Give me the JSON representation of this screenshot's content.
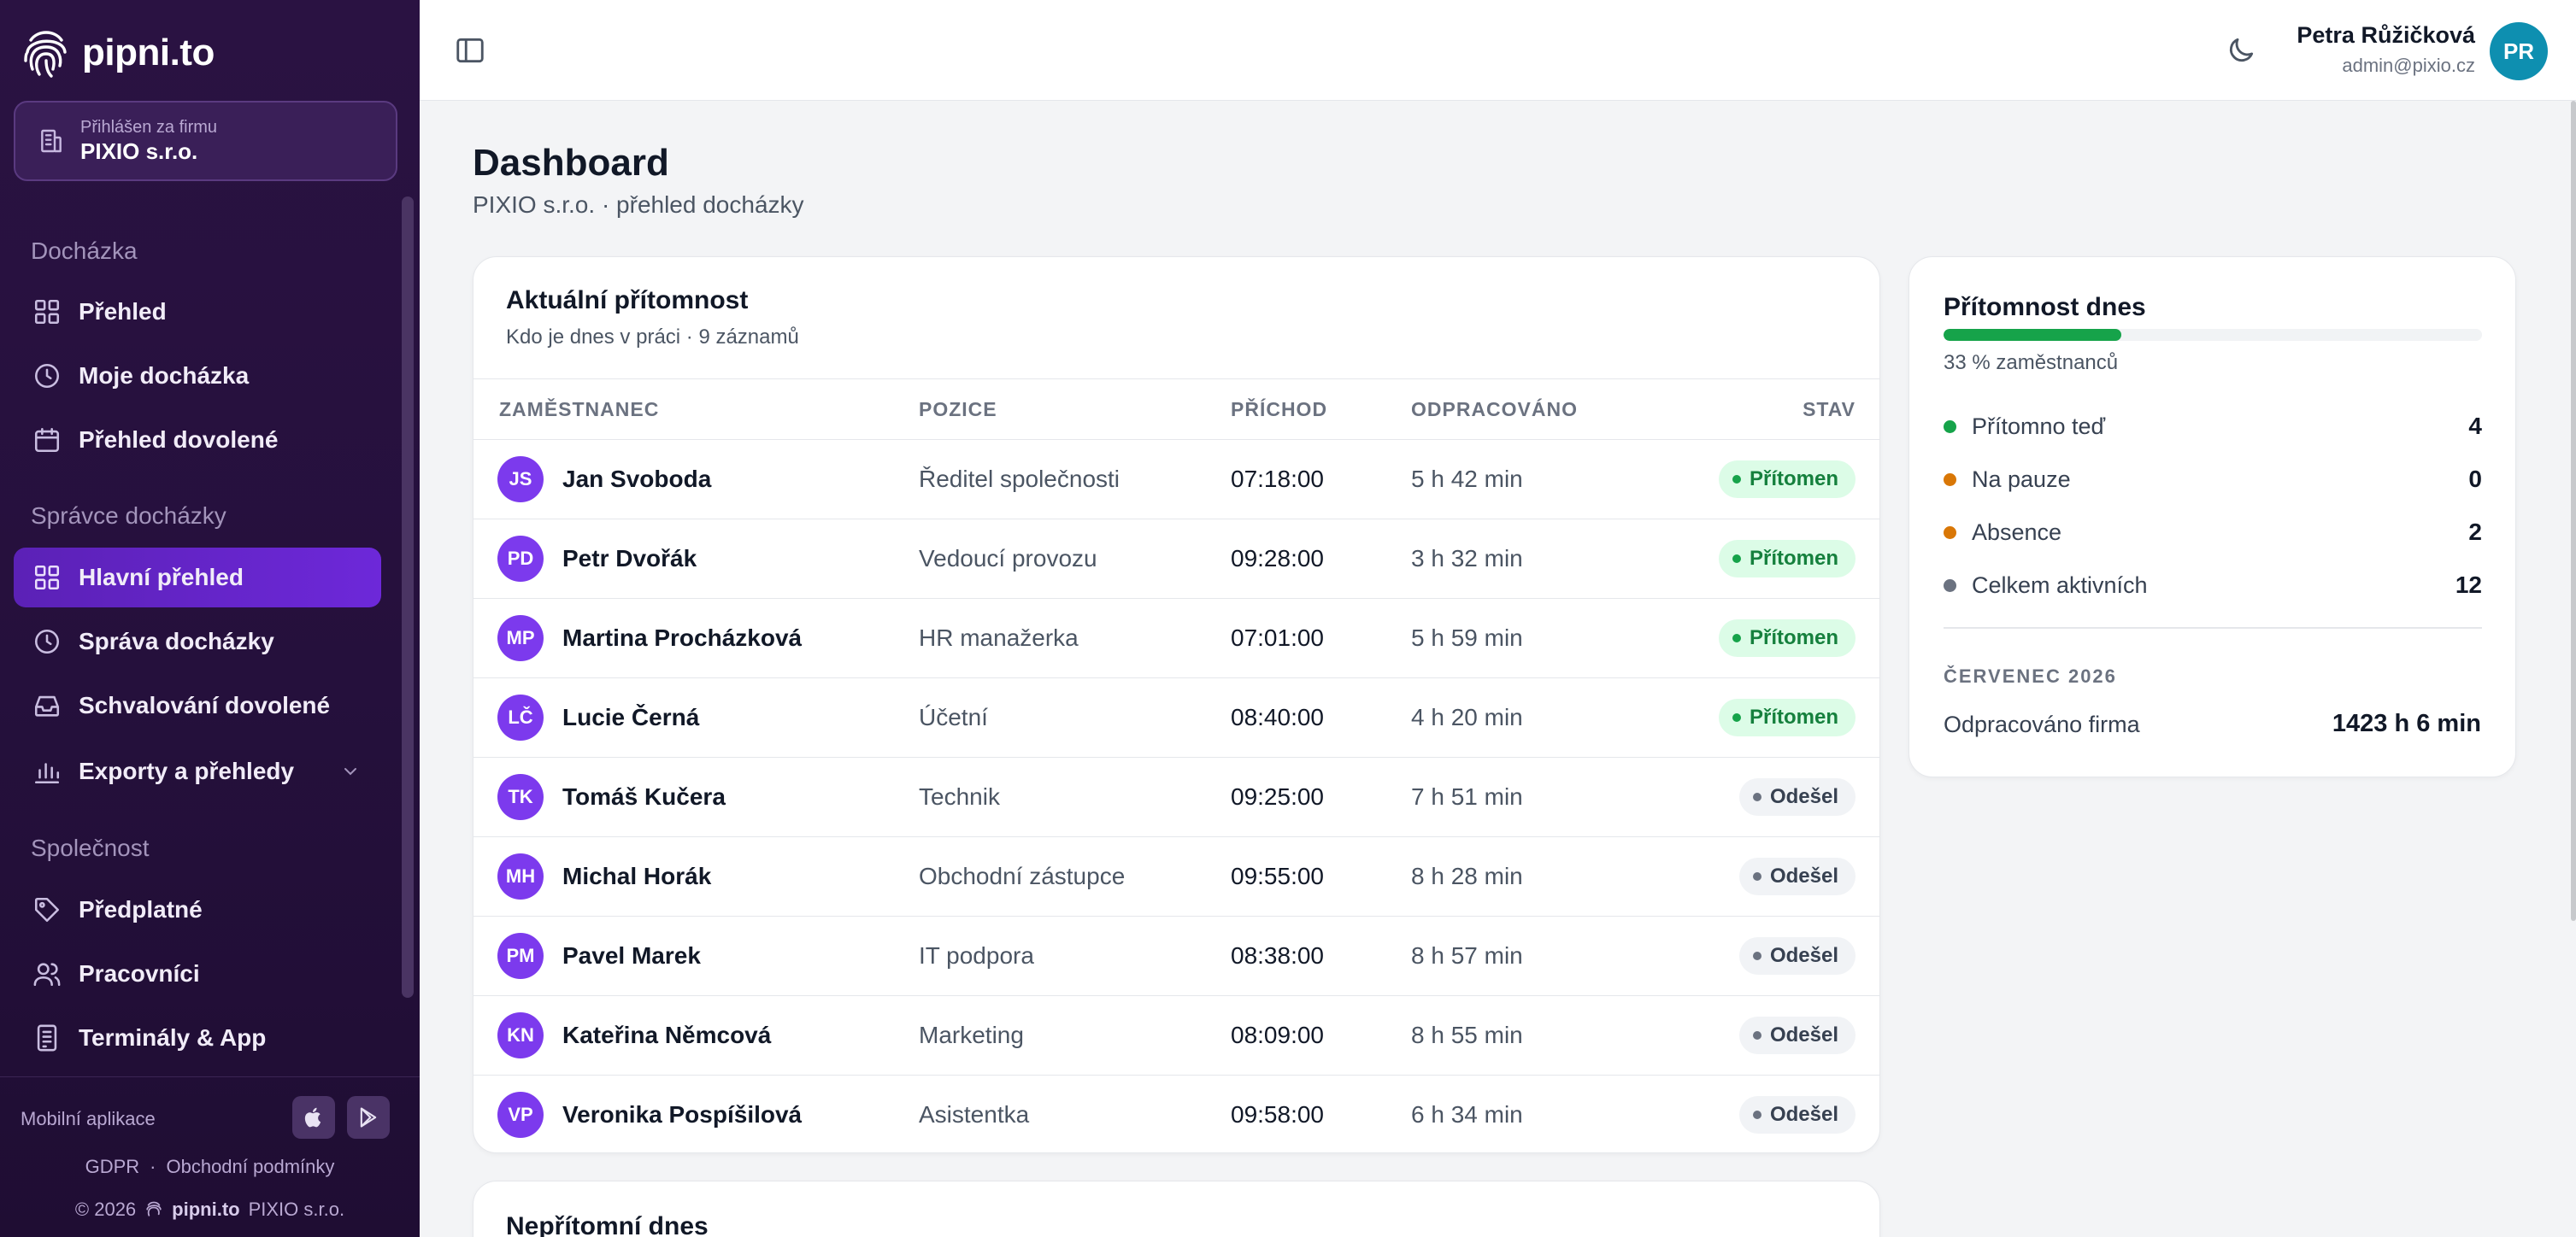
{
  "brand": {
    "name": "pipni.to"
  },
  "company": {
    "caption": "Přihlášen za firmu",
    "name": "PIXIO s.r.o."
  },
  "nav": {
    "sections": [
      {
        "label": "Docházka",
        "items": [
          {
            "label": "Přehled",
            "icon": "grid-icon"
          },
          {
            "label": "Moje docházka",
            "icon": "clock-icon"
          },
          {
            "label": "Přehled dovolené",
            "icon": "calendar-icon"
          }
        ]
      },
      {
        "label": "Správce docházky",
        "items": [
          {
            "label": "Hlavní přehled",
            "icon": "grid-icon",
            "active": true
          },
          {
            "label": "Správa docházky",
            "icon": "clock-icon"
          },
          {
            "label": "Schvalování dovolené",
            "icon": "inbox-icon"
          },
          {
            "label": "Exporty a přehledy",
            "icon": "bar-chart-icon",
            "expandable": true
          }
        ]
      },
      {
        "label": "Společnost",
        "items": [
          {
            "label": "Předplatné",
            "icon": "tag-icon"
          },
          {
            "label": "Pracovníci",
            "icon": "users-icon"
          },
          {
            "label": "Terminály & App",
            "icon": "tablet-icon"
          }
        ]
      }
    ]
  },
  "footer": {
    "mobile_label": "Mobilní aplikace",
    "gdpr": "GDPR",
    "separator": "·",
    "terms": "Obchodní podmínky",
    "copyright": "© 2026",
    "brand": "pipni.to",
    "company": "PIXIO s.r.o."
  },
  "user": {
    "name": "Petra Růžičková",
    "email": "admin@pixio.cz",
    "initials": "PR"
  },
  "page": {
    "title": "Dashboard",
    "subtitle": "PIXIO s.r.o. · přehled docházky"
  },
  "presence": {
    "title": "Aktuální přítomnost",
    "subtitle": "Kdo je dnes v práci · 9 záznamů",
    "columns": [
      "ZAMĚSTNANEC",
      "POZICE",
      "PŘÍCHOD",
      "ODPRACOVÁNO",
      "STAV"
    ],
    "rows": [
      {
        "initials": "JS",
        "name": "Jan Svoboda",
        "position": "Ředitel společnosti",
        "arrival": "07:18:00",
        "worked": "5 h 42 min",
        "status": "Přítomen",
        "status_type": "present"
      },
      {
        "initials": "PD",
        "name": "Petr Dvořák",
        "position": "Vedoucí provozu",
        "arrival": "09:28:00",
        "worked": "3 h 32 min",
        "status": "Přítomen",
        "status_type": "present"
      },
      {
        "initials": "MP",
        "name": "Martina Procházková",
        "position": "HR manažerka",
        "arrival": "07:01:00",
        "worked": "5 h 59 min",
        "status": "Přítomen",
        "status_type": "present"
      },
      {
        "initials": "LČ",
        "name": "Lucie Černá",
        "position": "Účetní",
        "arrival": "08:40:00",
        "worked": "4 h 20 min",
        "status": "Přítomen",
        "status_type": "present"
      },
      {
        "initials": "TK",
        "name": "Tomáš Kučera",
        "position": "Technik",
        "arrival": "09:25:00",
        "worked": "7 h 51 min",
        "status": "Odešel",
        "status_type": "left"
      },
      {
        "initials": "MH",
        "name": "Michal Horák",
        "position": "Obchodní zástupce",
        "arrival": "09:55:00",
        "worked": "8 h 28 min",
        "status": "Odešel",
        "status_type": "left"
      },
      {
        "initials": "PM",
        "name": "Pavel Marek",
        "position": "IT podpora",
        "arrival": "08:38:00",
        "worked": "8 h 57 min",
        "status": "Odešel",
        "status_type": "left"
      },
      {
        "initials": "KN",
        "name": "Kateřina Němcová",
        "position": "Marketing",
        "arrival": "08:09:00",
        "worked": "8 h 55 min",
        "status": "Odešel",
        "status_type": "left"
      },
      {
        "initials": "VP",
        "name": "Veronika Pospíšilová",
        "position": "Asistentka",
        "arrival": "09:58:00",
        "worked": "6 h 34 min",
        "status": "Odešel",
        "status_type": "left"
      }
    ]
  },
  "absent": {
    "title": "Nepřítomní dnes"
  },
  "today": {
    "title": "Přítomnost dnes",
    "progress_percent": 33,
    "progress_label": "33 % zaměstnanců",
    "stats": [
      {
        "label": "Přítomno teď",
        "value": "4",
        "color": "#16a34a"
      },
      {
        "label": "Na pauze",
        "value": "0",
        "color": "#d97706"
      },
      {
        "label": "Absence",
        "value": "2",
        "color": "#d97706"
      },
      {
        "label": "Celkem aktivních",
        "value": "12",
        "color": "#6b7280"
      }
    ],
    "month_label": "ČERVENEC 2026",
    "firm_label": "Odpracováno firma",
    "firm_value": "1423 h 6 min"
  },
  "colors": {
    "accent": "#6d28d9",
    "sidebar_bg": "#2a1242",
    "present": "#16a34a",
    "avatar": "#7c3aed",
    "user_avatar": "#0e8fb0"
  }
}
